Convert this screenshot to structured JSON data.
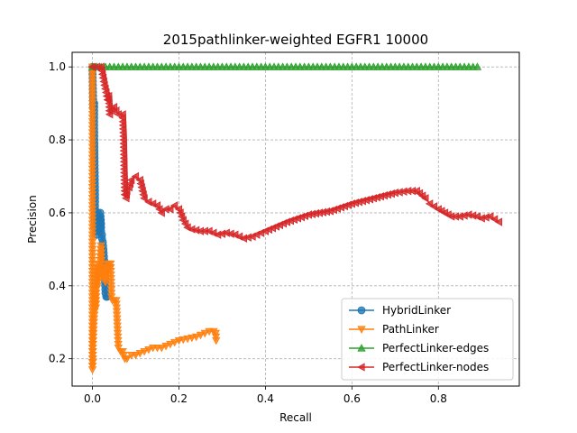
{
  "chart_data": {
    "type": "line",
    "title": "2015pathlinker-weighted EGFR1 10000",
    "xlabel": "Recall",
    "ylabel": "Precision",
    "xlim": [
      -0.047,
      0.987
    ],
    "ylim": [
      0.125,
      1.04
    ],
    "xticks": [
      0.0,
      0.2,
      0.4,
      0.6,
      0.8
    ],
    "yticks": [
      0.2,
      0.4,
      0.6,
      0.8,
      1.0
    ],
    "xtick_labels": [
      "0.0",
      "0.2",
      "0.4",
      "0.6",
      "0.8"
    ],
    "ytick_labels": [
      "0.2",
      "0.4",
      "0.6",
      "0.8",
      "1.0"
    ],
    "grid": true,
    "legend_position": "lower-right",
    "series": [
      {
        "name": "HybridLinker",
        "color": "#1f77b4",
        "marker": "circle",
        "x": [
          0.0,
          0.002,
          0.004,
          0.004,
          0.006,
          0.006,
          0.008,
          0.008,
          0.01,
          0.01,
          0.012,
          0.012,
          0.014,
          0.016,
          0.018,
          0.018,
          0.02,
          0.02,
          0.022,
          0.022,
          0.024,
          0.026,
          0.028,
          0.03,
          0.032,
          0.034
        ],
        "y": [
          1.0,
          0.89,
          0.9,
          0.83,
          0.65,
          0.56,
          0.55,
          0.58,
          0.59,
          0.54,
          0.6,
          0.55,
          0.57,
          0.58,
          0.56,
          0.6,
          0.57,
          0.55,
          0.54,
          0.53,
          0.52,
          0.49,
          0.45,
          0.38,
          0.37,
          0.37
        ]
      },
      {
        "name": "PathLinker",
        "color": "#ff7f0e",
        "marker": "triangle-down",
        "x": [
          0.0,
          0.0,
          0.001,
          0.001,
          0.002,
          0.003,
          0.004,
          0.005,
          0.006,
          0.007,
          0.008,
          0.009,
          0.01,
          0.011,
          0.012,
          0.013,
          0.014,
          0.016,
          0.018,
          0.02,
          0.022,
          0.024,
          0.026,
          0.028,
          0.03,
          0.032,
          0.034,
          0.036,
          0.038,
          0.04,
          0.042,
          0.044,
          0.046,
          0.05,
          0.055,
          0.06,
          0.065,
          0.07,
          0.075,
          0.08,
          0.09,
          0.1,
          0.12,
          0.14,
          0.16,
          0.18,
          0.2,
          0.22,
          0.24,
          0.26,
          0.27,
          0.28,
          0.285,
          0.286
        ],
        "y": [
          1.0,
          0.17,
          0.2,
          0.23,
          0.26,
          0.29,
          0.31,
          0.33,
          0.35,
          0.38,
          0.34,
          0.4,
          0.42,
          0.45,
          0.4,
          0.46,
          0.44,
          0.42,
          0.48,
          0.51,
          0.45,
          0.44,
          0.42,
          0.45,
          0.41,
          0.43,
          0.46,
          0.45,
          0.46,
          0.45,
          0.46,
          0.37,
          0.36,
          0.36,
          0.36,
          0.23,
          0.22,
          0.22,
          0.2,
          0.2,
          0.21,
          0.21,
          0.22,
          0.23,
          0.23,
          0.24,
          0.25,
          0.255,
          0.26,
          0.27,
          0.275,
          0.275,
          0.27,
          0.25
        ]
      },
      {
        "name": "PerfectLinker-edges",
        "color": "#2ca02c",
        "marker": "triangle-up",
        "x": [
          0.0,
          0.05,
          0.1,
          0.15,
          0.2,
          0.25,
          0.3,
          0.35,
          0.4,
          0.45,
          0.5,
          0.55,
          0.6,
          0.65,
          0.7,
          0.75,
          0.8,
          0.85,
          0.89
        ],
        "y": [
          1.0,
          1.0,
          1.0,
          1.0,
          1.0,
          1.0,
          1.0,
          1.0,
          1.0,
          1.0,
          1.0,
          1.0,
          1.0,
          1.0,
          1.0,
          1.0,
          1.0,
          1.0,
          1.0
        ]
      },
      {
        "name": "PerfectLinker-nodes",
        "color": "#d62728",
        "marker": "triangle-left",
        "x": [
          0.0,
          0.01,
          0.02,
          0.025,
          0.028,
          0.032,
          0.035,
          0.038,
          0.04,
          0.045,
          0.05,
          0.06,
          0.07,
          0.072,
          0.075,
          0.078,
          0.08,
          0.085,
          0.09,
          0.1,
          0.11,
          0.12,
          0.13,
          0.14,
          0.15,
          0.16,
          0.17,
          0.18,
          0.19,
          0.2,
          0.21,
          0.22,
          0.23,
          0.25,
          0.27,
          0.29,
          0.31,
          0.33,
          0.35,
          0.37,
          0.4,
          0.45,
          0.5,
          0.55,
          0.6,
          0.65,
          0.7,
          0.73,
          0.75,
          0.77,
          0.78,
          0.8,
          0.83,
          0.85,
          0.87,
          0.89,
          0.9,
          0.92,
          0.94
        ],
        "y": [
          1.0,
          1.0,
          1.0,
          0.97,
          0.95,
          0.93,
          0.91,
          0.92,
          0.87,
          0.88,
          0.89,
          0.87,
          0.87,
          0.81,
          0.65,
          0.64,
          0.66,
          0.67,
          0.69,
          0.7,
          0.69,
          0.64,
          0.63,
          0.625,
          0.62,
          0.6,
          0.61,
          0.61,
          0.62,
          0.61,
          0.58,
          0.56,
          0.555,
          0.55,
          0.55,
          0.54,
          0.545,
          0.54,
          0.53,
          0.535,
          0.55,
          0.575,
          0.595,
          0.605,
          0.625,
          0.64,
          0.655,
          0.66,
          0.66,
          0.64,
          0.625,
          0.61,
          0.59,
          0.59,
          0.595,
          0.59,
          0.585,
          0.59,
          0.575
        ]
      }
    ]
  }
}
